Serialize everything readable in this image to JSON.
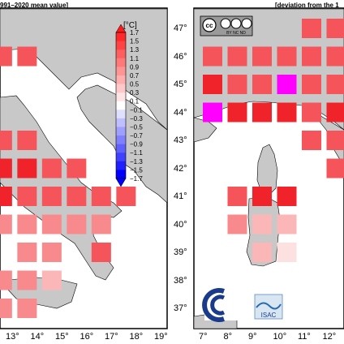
{
  "left_map": {
    "title": "991–2020 mean value]",
    "lon_ticks": [
      "13°",
      "14°",
      "15°",
      "16°",
      "17°",
      "18°",
      "19°"
    ],
    "colorbar": {
      "unit": "[°C]",
      "labels": [
        "1.7",
        "1.5",
        "1.3",
        "1.1",
        "0.9",
        "0.7",
        "0.5",
        "0.3",
        "0.1",
        "−0.1",
        "−0.3",
        "−0.5",
        "−0.7",
        "−0.9",
        "−1.1",
        "−1.3",
        "−1.5",
        "−1.7"
      ]
    }
  },
  "right_map": {
    "title": "[deviation from the 1",
    "lat_ticks": [
      "47°",
      "46°",
      "45°",
      "44°",
      "43°",
      "42°",
      "41°",
      "40°",
      "39°",
      "38°",
      "37°"
    ],
    "lon_ticks": [
      "7°",
      "8°",
      "9°",
      "10°",
      "11°",
      "12°"
    ],
    "license_badge": {
      "top": "cc",
      "bottom": "BY   NC   ND"
    },
    "logo_text": "ISAC"
  },
  "colors": {
    "sea": "#ffffff",
    "land": "#c8c8c8",
    "anomaly_dark": "#f0222a",
    "anomaly_mid": "#f5555a",
    "anomaly_light": "#f88a8d",
    "anomaly_pale": "#fbb7b8",
    "anomaly_faint": "#fde1e1",
    "anomaly_max": "#ff00ff"
  },
  "left_cells": [
    {
      "lon": 12,
      "lat": 46,
      "level": "mid"
    },
    {
      "lon": 13,
      "lat": 46,
      "level": "mid"
    },
    {
      "lon": 11,
      "lat": 44,
      "level": "mid"
    },
    {
      "lon": 11,
      "lat": 43,
      "level": "mid"
    },
    {
      "lon": 12,
      "lat": 43,
      "level": "mid"
    },
    {
      "lon": 13,
      "lat": 43,
      "level": "mid"
    },
    {
      "lon": 11,
      "lat": 42,
      "level": "dark"
    },
    {
      "lon": 12,
      "lat": 42,
      "level": "dark"
    },
    {
      "lon": 13,
      "lat": 42,
      "level": "dark"
    },
    {
      "lon": 14,
      "lat": 42,
      "level": "mid"
    },
    {
      "lon": 15,
      "lat": 42,
      "level": "mid"
    },
    {
      "lon": 11,
      "lat": 41,
      "level": "mid"
    },
    {
      "lon": 12,
      "lat": 41,
      "level": "dark"
    },
    {
      "lon": 13,
      "lat": 41,
      "level": "mid"
    },
    {
      "lon": 14,
      "lat": 41,
      "level": "mid"
    },
    {
      "lon": 15,
      "lat": 41,
      "level": "mid"
    },
    {
      "lon": 16,
      "lat": 41,
      "level": "mid"
    },
    {
      "lon": 17,
      "lat": 41,
      "level": "mid"
    },
    {
      "lon": 11,
      "lat": 40,
      "level": "light"
    },
    {
      "lon": 12,
      "lat": 40,
      "level": "light"
    },
    {
      "lon": 13,
      "lat": 40,
      "level": "light"
    },
    {
      "lon": 14,
      "lat": 40,
      "level": "light"
    },
    {
      "lon": 15,
      "lat": 40,
      "level": "light"
    },
    {
      "lon": 16,
      "lat": 40,
      "level": "light"
    },
    {
      "lon": 13,
      "lat": 39,
      "level": "light"
    },
    {
      "lon": 14,
      "lat": 39,
      "level": "light"
    },
    {
      "lon": 16,
      "lat": 39,
      "level": "mid"
    },
    {
      "lon": 11,
      "lat": 38,
      "level": "light"
    },
    {
      "lon": 12,
      "lat": 38,
      "level": "light"
    },
    {
      "lon": 13,
      "lat": 38,
      "level": "light"
    },
    {
      "lon": 14,
      "lat": 38,
      "level": "pale"
    },
    {
      "lon": 11,
      "lat": 37,
      "level": "light"
    },
    {
      "lon": 12,
      "lat": 37,
      "level": "light"
    },
    {
      "lon": 13,
      "lat": 37,
      "level": "light"
    }
  ],
  "right_cells": [
    {
      "lon": 11,
      "lat": 47,
      "level": "mid"
    },
    {
      "lon": 12,
      "lat": 47,
      "level": "mid"
    },
    {
      "lon": 7,
      "lat": 46,
      "level": "mid"
    },
    {
      "lon": 8,
      "lat": 46,
      "level": "mid"
    },
    {
      "lon": 9,
      "lat": 46,
      "level": "mid"
    },
    {
      "lon": 10,
      "lat": 46,
      "level": "mid"
    },
    {
      "lon": 11,
      "lat": 46,
      "level": "mid"
    },
    {
      "lon": 12,
      "lat": 46,
      "level": "mid"
    },
    {
      "lon": 7,
      "lat": 45,
      "level": "dark"
    },
    {
      "lon": 8,
      "lat": 45,
      "level": "mid"
    },
    {
      "lon": 9,
      "lat": 45,
      "level": "mid"
    },
    {
      "lon": 10,
      "lat": 45,
      "level": "max"
    },
    {
      "lon": 11,
      "lat": 45,
      "level": "mid"
    },
    {
      "lon": 12,
      "lat": 45,
      "level": "mid"
    },
    {
      "lon": 7,
      "lat": 44,
      "level": "max"
    },
    {
      "lon": 8,
      "lat": 44,
      "level": "dark"
    },
    {
      "lon": 9,
      "lat": 44,
      "level": "dark"
    },
    {
      "lon": 10,
      "lat": 44,
      "level": "dark"
    },
    {
      "lon": 11,
      "lat": 44,
      "level": "mid"
    },
    {
      "lon": 12,
      "lat": 44,
      "level": "dark"
    },
    {
      "lon": 11,
      "lat": 43,
      "level": "mid"
    },
    {
      "lon": 12,
      "lat": 43,
      "level": "mid"
    },
    {
      "lon": 12,
      "lat": 42,
      "level": "mid"
    },
    {
      "lon": 8,
      "lat": 41,
      "level": "mid"
    },
    {
      "lon": 9,
      "lat": 41,
      "level": "dark"
    },
    {
      "lon": 10,
      "lat": 41,
      "level": "dark"
    },
    {
      "lon": 8,
      "lat": 40,
      "level": "light"
    },
    {
      "lon": 9,
      "lat": 40,
      "level": "pale"
    },
    {
      "lon": 10,
      "lat": 40,
      "level": "pale"
    },
    {
      "lon": 9,
      "lat": 39,
      "level": "pale"
    },
    {
      "lon": 10,
      "lat": 39,
      "level": "faint"
    }
  ]
}
